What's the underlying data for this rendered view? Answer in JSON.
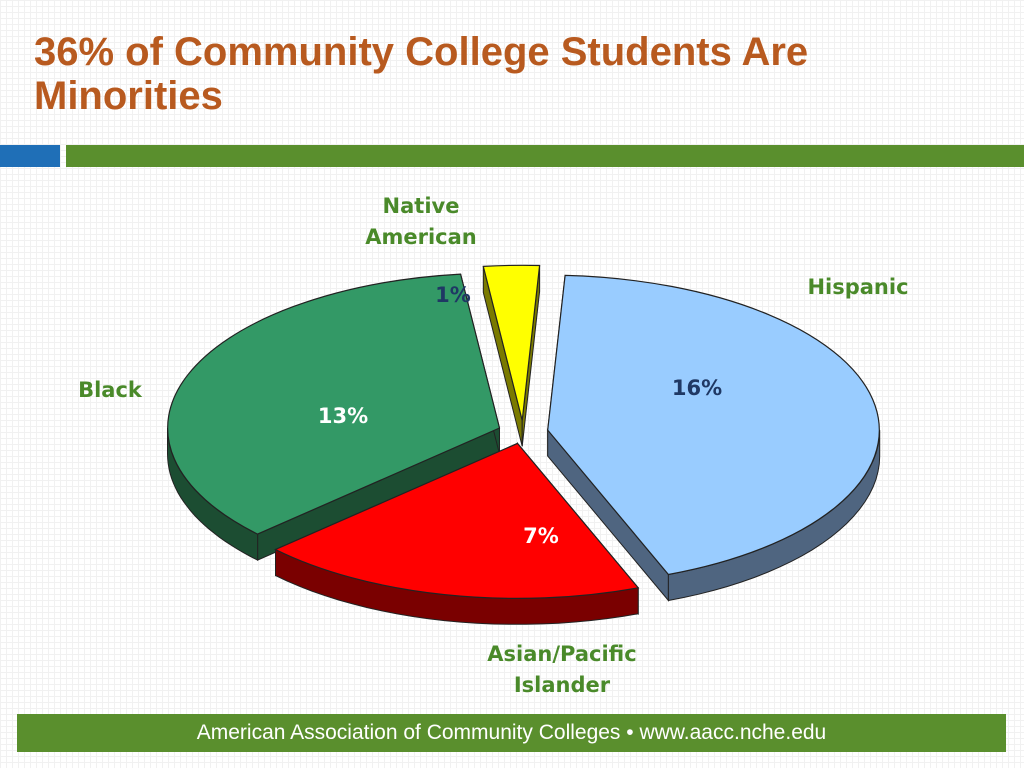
{
  "slide": {
    "title": "36% of Community College Students Are Minorities",
    "footer": "American Association of Community Colleges • www.aacc.nche.edu"
  },
  "colors": {
    "title": "#b85a1f",
    "category_label": "#4a8a2a",
    "accent_blue": "#1f6fb7",
    "accent_green": "#5a8f2d"
  },
  "chart_data": {
    "type": "pie",
    "style": "3d-exploded",
    "categories": [
      "Hispanic",
      "Asian/Pacific Islander",
      "Black",
      "Native American"
    ],
    "values": [
      16,
      7,
      13,
      1
    ],
    "value_labels": [
      "16%",
      "7%",
      "13%",
      "1%"
    ],
    "colors": [
      "#99ccff",
      "#ff0000",
      "#339966",
      "#ffff00"
    ],
    "title": "",
    "legend": "none"
  }
}
